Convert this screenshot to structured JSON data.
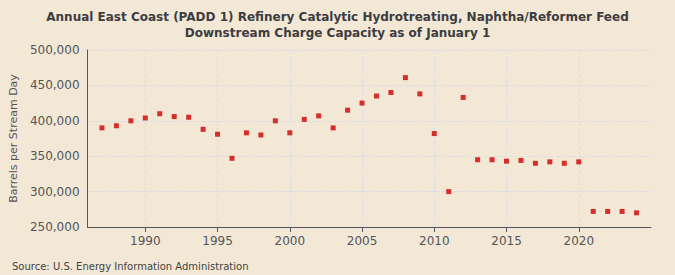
{
  "chart_data": {
    "type": "scatter",
    "title": "Annual East Coast (PADD 1) Refinery Catalytic Hydrotreating, Naphtha/Reformer Feed\nDownstream Charge Capacity as of January 1",
    "ylabel": "Barrels per Stream Day",
    "annotations": [
      "Source: U.S. Energy Information Administration"
    ],
    "x": [
      1987,
      1988,
      1989,
      1990,
      1991,
      1992,
      1993,
      1994,
      1995,
      1996,
      1997,
      1998,
      1999,
      2000,
      2001,
      2002,
      2003,
      2004,
      2005,
      2006,
      2007,
      2008,
      2009,
      2010,
      2011,
      2012,
      2013,
      2014,
      2015,
      2016,
      2017,
      2018,
      2019,
      2020,
      2021,
      2022,
      2023,
      2024
    ],
    "values": [
      390000,
      393000,
      400000,
      404000,
      410000,
      406000,
      405000,
      388000,
      381000,
      347000,
      383000,
      380000,
      400000,
      383000,
      402000,
      407000,
      390000,
      415000,
      425000,
      435000,
      440000,
      461000,
      438000,
      382000,
      300000,
      433000,
      345000,
      345000,
      343000,
      344000,
      340000,
      342000,
      340000,
      342000,
      272000,
      272000,
      272000,
      270000
    ],
    "color": "#cc0000",
    "marker": "square",
    "xlim": [
      1986,
      2025
    ],
    "xticks": [
      1990,
      1995,
      2000,
      2005,
      2010,
      2015,
      2020
    ],
    "ylim": [
      250000,
      500000
    ],
    "yticks": [
      {
        "value": 250000,
        "label": "250,000"
      },
      {
        "value": 300000,
        "label": "300,000"
      },
      {
        "value": 350000,
        "label": "350,000"
      },
      {
        "value": 400000,
        "label": "400,000"
      },
      {
        "value": 450000,
        "label": "450,000"
      },
      {
        "value": 500000,
        "label": "500,000"
      }
    ],
    "grid": true
  }
}
